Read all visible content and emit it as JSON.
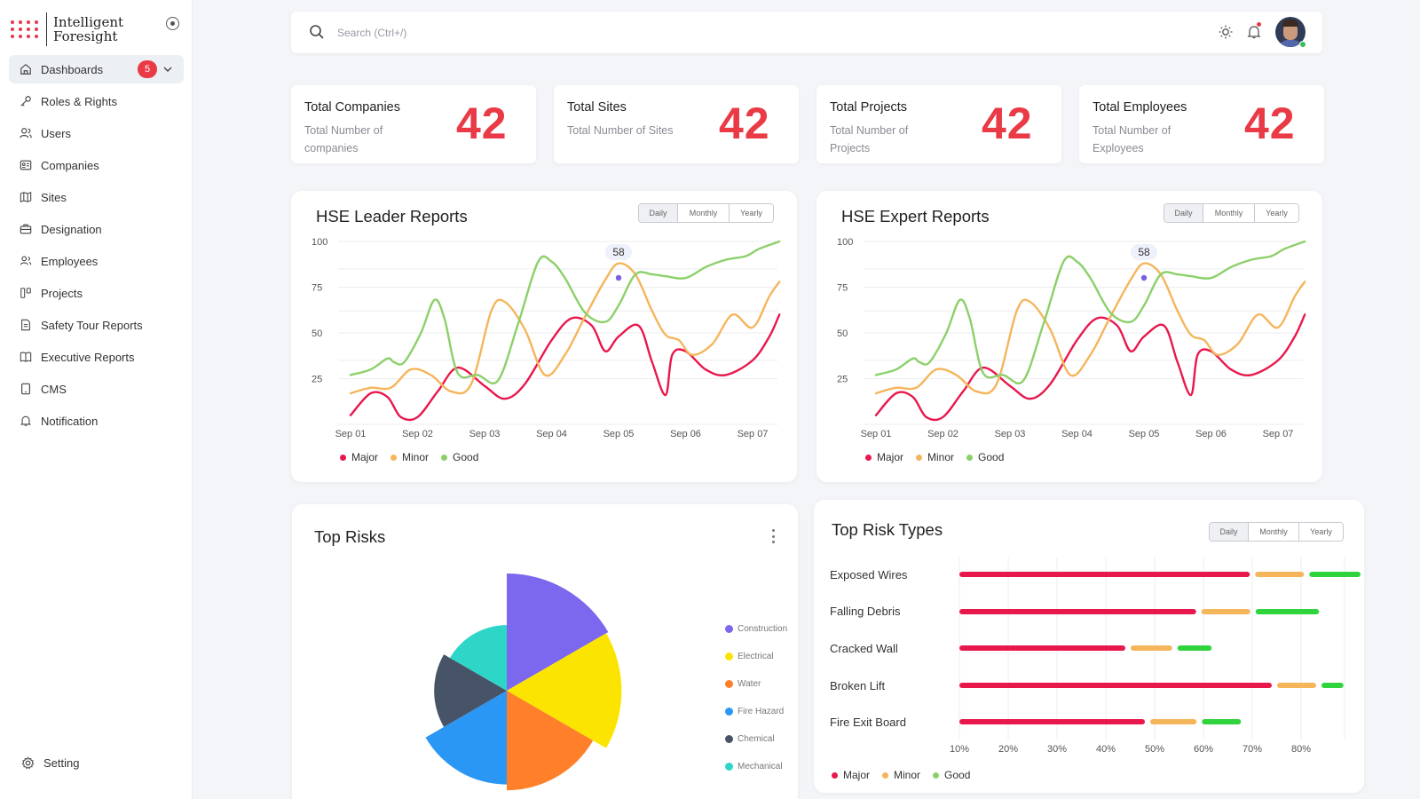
{
  "brand": {
    "line1": "Intelligent",
    "line2": "Foresight"
  },
  "sidebar": {
    "items": [
      {
        "label": "Dashboards",
        "icon": "home-icon",
        "badge": "5"
      },
      {
        "label": "Roles & Rights",
        "icon": "key-icon"
      },
      {
        "label": "Users",
        "icon": "users-icon"
      },
      {
        "label": "Companies",
        "icon": "id-card-icon"
      },
      {
        "label": "Sites",
        "icon": "map-icon"
      },
      {
        "label": "Designation",
        "icon": "briefcase-icon"
      },
      {
        "label": "Employees",
        "icon": "employees-icon"
      },
      {
        "label": "Projects",
        "icon": "projects-icon"
      },
      {
        "label": "Safety Tour Reports",
        "icon": "report-icon"
      },
      {
        "label": "Executive Reports",
        "icon": "book-icon"
      },
      {
        "label": "CMS",
        "icon": "tablet-icon"
      },
      {
        "label": "Notification",
        "icon": "bell-icon"
      }
    ],
    "setting": "Setting"
  },
  "search": {
    "placeholder": "Search (Ctrl+/)"
  },
  "stats": [
    {
      "title": "Total Companies",
      "sub": "Total Number of companies",
      "value": "42"
    },
    {
      "title": "Total Sites",
      "sub": "Total Number of Sites",
      "value": "42"
    },
    {
      "title": "Total Projects",
      "sub": "Total Number of Projects",
      "value": "42"
    },
    {
      "title": "Total Employees",
      "sub": "Total Number of Exployees",
      "value": "42"
    }
  ],
  "periods": [
    "Daily",
    "Monthly",
    "Yearly"
  ],
  "colors": {
    "major": "#e8184c",
    "minor": "#f5b55b",
    "good": "#8cd06a",
    "accent": "#e93a46"
  },
  "chart_data": [
    {
      "type": "line",
      "title": "HSE Leader Reports",
      "x_ticks": [
        "Sep 01",
        "Sep 02",
        "Sep 03",
        "Sep 04",
        "Sep 05",
        "Sep 06",
        "Sep 07"
      ],
      "y_ticks": [
        100,
        75,
        50,
        25
      ],
      "tooltip_value": "58",
      "series": [
        {
          "name": "Major",
          "x": [
            0,
            0.3,
            0.55,
            0.75,
            1.0,
            1.3,
            1.6,
            2.0,
            2.3,
            2.6,
            3.0,
            3.3,
            3.6,
            3.8,
            4.0,
            4.3,
            4.5,
            4.7,
            4.8,
            5.0,
            5.3,
            5.6,
            6.0,
            6.25,
            6.4
          ],
          "y": [
            5,
            17,
            15,
            4,
            4,
            18,
            31,
            21,
            14,
            22,
            46,
            58,
            54,
            40,
            48,
            54,
            34,
            16,
            38,
            40,
            30,
            27,
            35,
            48,
            60
          ]
        },
        {
          "name": "Minor",
          "x": [
            0,
            0.3,
            0.6,
            0.9,
            1.2,
            1.5,
            1.8,
            2.1,
            2.3,
            2.6,
            2.9,
            3.2,
            3.5,
            3.8,
            4.0,
            4.25,
            4.5,
            4.7,
            4.9,
            5.1,
            5.4,
            5.7,
            6.0,
            6.25,
            6.4
          ],
          "y": [
            17,
            20,
            20,
            30,
            27,
            18,
            22,
            62,
            67,
            52,
            27,
            38,
            59,
            79,
            88,
            82,
            62,
            49,
            46,
            38,
            44,
            60,
            53,
            70,
            78
          ]
        },
        {
          "name": "Good",
          "x": [
            0,
            0.3,
            0.55,
            0.65,
            0.8,
            1.05,
            1.25,
            1.4,
            1.6,
            1.9,
            2.2,
            2.5,
            2.8,
            3.0,
            3.2,
            3.5,
            3.8,
            4.0,
            4.25,
            4.5,
            4.7,
            5.0,
            5.3,
            5.6,
            5.9,
            6.1,
            6.4
          ],
          "y": [
            27,
            30,
            36,
            34,
            34,
            50,
            68,
            58,
            28,
            27,
            24,
            55,
            89,
            89,
            80,
            61,
            56,
            65,
            82,
            82,
            81,
            80,
            86,
            90,
            92,
            96,
            100
          ]
        }
      ]
    },
    {
      "type": "line",
      "title": "HSE Expert Reports",
      "x_ticks": [
        "Sep 01",
        "Sep 02",
        "Sep 03",
        "Sep 04",
        "Sep 05",
        "Sep 06",
        "Sep 07"
      ],
      "y_ticks": [
        100,
        75,
        50,
        25
      ],
      "tooltip_value": "58",
      "series": [
        {
          "name": "Major",
          "x": [
            0,
            0.3,
            0.55,
            0.75,
            1.0,
            1.3,
            1.6,
            2.0,
            2.3,
            2.6,
            3.0,
            3.3,
            3.6,
            3.8,
            4.0,
            4.3,
            4.5,
            4.7,
            4.8,
            5.0,
            5.3,
            5.6,
            6.0,
            6.25,
            6.4
          ],
          "y": [
            5,
            17,
            15,
            4,
            4,
            18,
            31,
            21,
            14,
            22,
            46,
            58,
            54,
            40,
            48,
            54,
            34,
            16,
            38,
            40,
            30,
            27,
            35,
            48,
            60
          ]
        },
        {
          "name": "Minor",
          "x": [
            0,
            0.3,
            0.6,
            0.9,
            1.2,
            1.5,
            1.8,
            2.1,
            2.3,
            2.6,
            2.9,
            3.2,
            3.5,
            3.8,
            4.0,
            4.25,
            4.5,
            4.7,
            4.9,
            5.1,
            5.4,
            5.7,
            6.0,
            6.25,
            6.4
          ],
          "y": [
            17,
            20,
            20,
            30,
            27,
            18,
            22,
            62,
            67,
            52,
            27,
            38,
            59,
            79,
            88,
            82,
            62,
            49,
            46,
            38,
            44,
            60,
            53,
            70,
            78
          ]
        },
        {
          "name": "Good",
          "x": [
            0,
            0.3,
            0.55,
            0.65,
            0.8,
            1.05,
            1.25,
            1.4,
            1.6,
            1.9,
            2.2,
            2.5,
            2.8,
            3.0,
            3.2,
            3.5,
            3.8,
            4.0,
            4.25,
            4.5,
            4.7,
            5.0,
            5.3,
            5.6,
            5.9,
            6.1,
            6.4
          ],
          "y": [
            27,
            30,
            36,
            34,
            34,
            50,
            68,
            58,
            28,
            27,
            24,
            55,
            89,
            89,
            80,
            61,
            56,
            65,
            82,
            82,
            81,
            80,
            86,
            90,
            92,
            96,
            100
          ]
        }
      ]
    },
    {
      "type": "pie",
      "title": "Top Risks",
      "labels": [
        "Construction",
        "Electrical",
        "Water",
        "Fire Hazard",
        "Chemical",
        "Mechanical"
      ],
      "colors": [
        "#7b68ee",
        "#fbe500",
        "#ff7f2a",
        "#2b97f5",
        "#475468",
        "#2ed6c8"
      ],
      "angles_deg": [
        60,
        60,
        60,
        60,
        60,
        60
      ],
      "radii": [
        1.0,
        0.98,
        0.85,
        0.8,
        0.62,
        0.56
      ]
    },
    {
      "type": "bar",
      "title": "Top Risk Types",
      "categories": [
        "Exposed Wires",
        "Falling Debris",
        "Cracked Wall",
        "Broken Lift",
        "Fire Exit Board"
      ],
      "x_ticks": [
        "10%",
        "20%",
        "30%",
        "40%",
        "50%",
        "60%",
        "70%",
        "80%"
      ],
      "series": [
        {
          "name": "Major",
          "values": [
            59.5,
            48.5,
            34,
            64,
            38
          ]
        },
        {
          "name": "Minor",
          "values": [
            10,
            10,
            8.5,
            8,
            9.5
          ]
        },
        {
          "name": "Good",
          "values": [
            10.5,
            13,
            7,
            4.5,
            8
          ]
        }
      ]
    }
  ]
}
